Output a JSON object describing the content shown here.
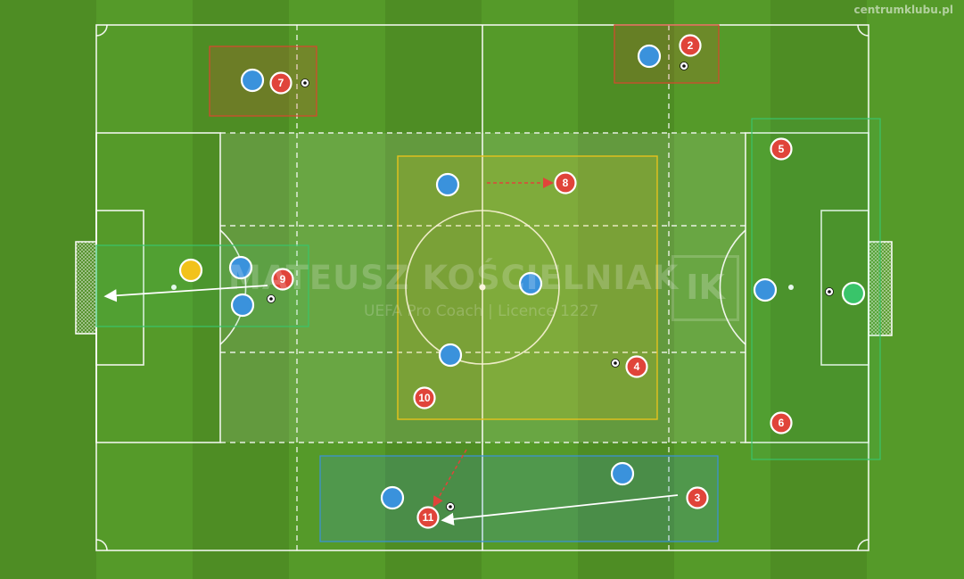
{
  "site_label": "centrumklubu.pl",
  "watermark": {
    "name": "MATEUSZ KOŚCIELNIAK",
    "subtitle": "UEFA Pro Coach  |  Licence 1227",
    "logo_text": "IK"
  },
  "colors": {
    "pitch": "#4f8f24",
    "red_team": "#e0443a",
    "blue_team": "#3a92dc",
    "goalkeeper_left": "#f2c21a",
    "goalkeeper_right": "#39c46a",
    "zone_red": "#d9452f",
    "zone_green": "#39c46a",
    "zone_yellow": "#e6c21c",
    "zone_blue": "#3a92dc"
  },
  "red_players": [
    {
      "number": "2"
    },
    {
      "number": "7"
    },
    {
      "number": "5"
    },
    {
      "number": "8"
    },
    {
      "number": "9"
    },
    {
      "number": "4"
    },
    {
      "number": "10"
    },
    {
      "number": "6"
    },
    {
      "number": "3"
    },
    {
      "number": "11"
    }
  ]
}
